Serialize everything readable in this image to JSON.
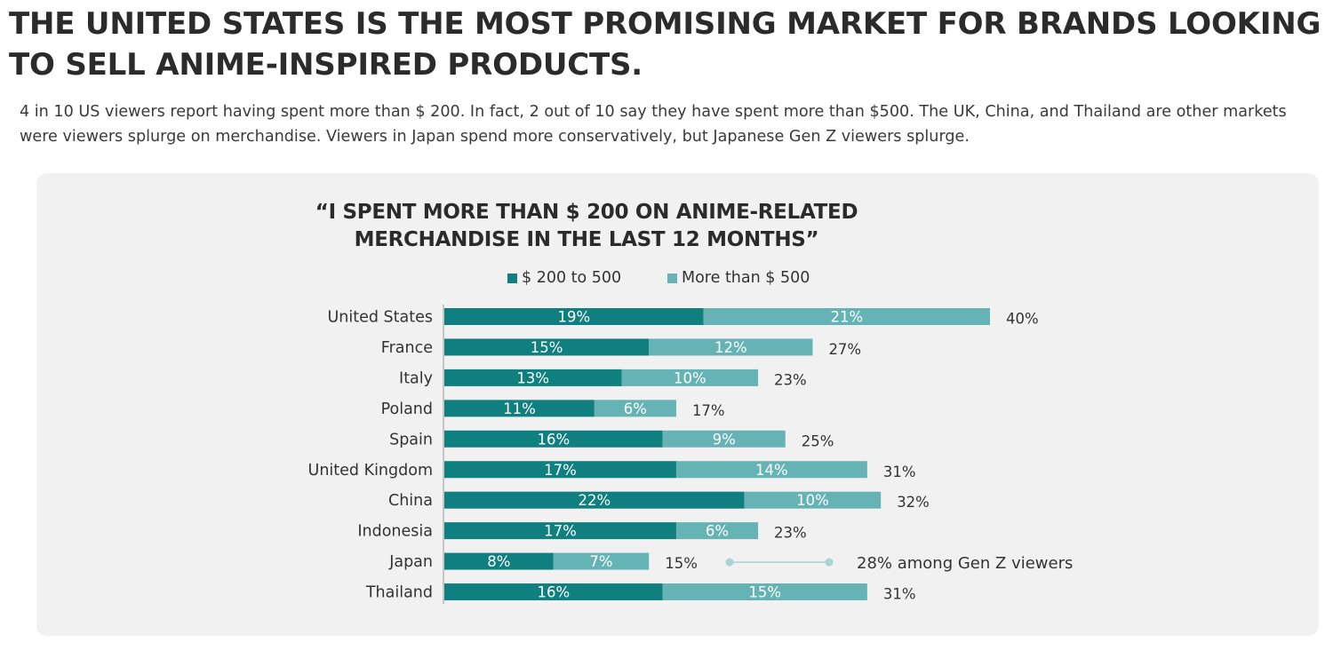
{
  "headline": "THE UNITED STATES IS THE MOST PROMISING MARKET FOR BRANDS LOOKING TO SELL ANIME-INSPIRED PRODUCTS.",
  "lede": "4 in 10 US viewers report having spent more than $ 200. In fact, 2 out of 10 say they have spent more than $500. The UK, China, and Thailand are other markets were viewers splurge on merchandise. Viewers in Japan spend more conservatively, but Japanese Gen Z viewers splurge.",
  "colors": {
    "series_a": "#0f7f7f",
    "series_b": "#66b3b5",
    "panel": "#f1f1f1",
    "note_line": "#a9d2d5"
  },
  "chart_data": {
    "type": "bar",
    "orientation": "horizontal",
    "stacked": true,
    "title": "“I SPENT MORE THAN $ 200 ON ANIME-RELATED MERCHANDISE IN THE LAST 12 MONTHS”",
    "legend_position": "top",
    "categories": [
      "United States",
      "France",
      "Italy",
      "Poland",
      "Spain",
      "United Kingdom",
      "China",
      "Indonesia",
      "Japan",
      "Thailand"
    ],
    "series": [
      {
        "name": "$ 200 to 500",
        "values": [
          19,
          15,
          13,
          11,
          16,
          17,
          22,
          17,
          8,
          16
        ],
        "labels": [
          "19%",
          "15%",
          "13%",
          "11%",
          "16%",
          "17%",
          "22%",
          "17%",
          "8%",
          "16%"
        ]
      },
      {
        "name": "More than $ 500",
        "values": [
          21,
          12,
          10,
          6,
          9,
          14,
          10,
          6,
          7,
          15
        ],
        "labels": [
          "21%",
          "12%",
          "10%",
          "6%",
          "9%",
          "14%",
          "10%",
          "6%",
          "7%",
          "15%"
        ]
      }
    ],
    "totals": [
      "40%",
      "27%",
      "23%",
      "17%",
      "25%",
      "31%",
      "32%",
      "23%",
      "15%",
      "31%"
    ],
    "xlim": [
      0,
      40
    ],
    "annotation": {
      "category": "Japan",
      "text": "28% among Gen Z viewers"
    }
  }
}
